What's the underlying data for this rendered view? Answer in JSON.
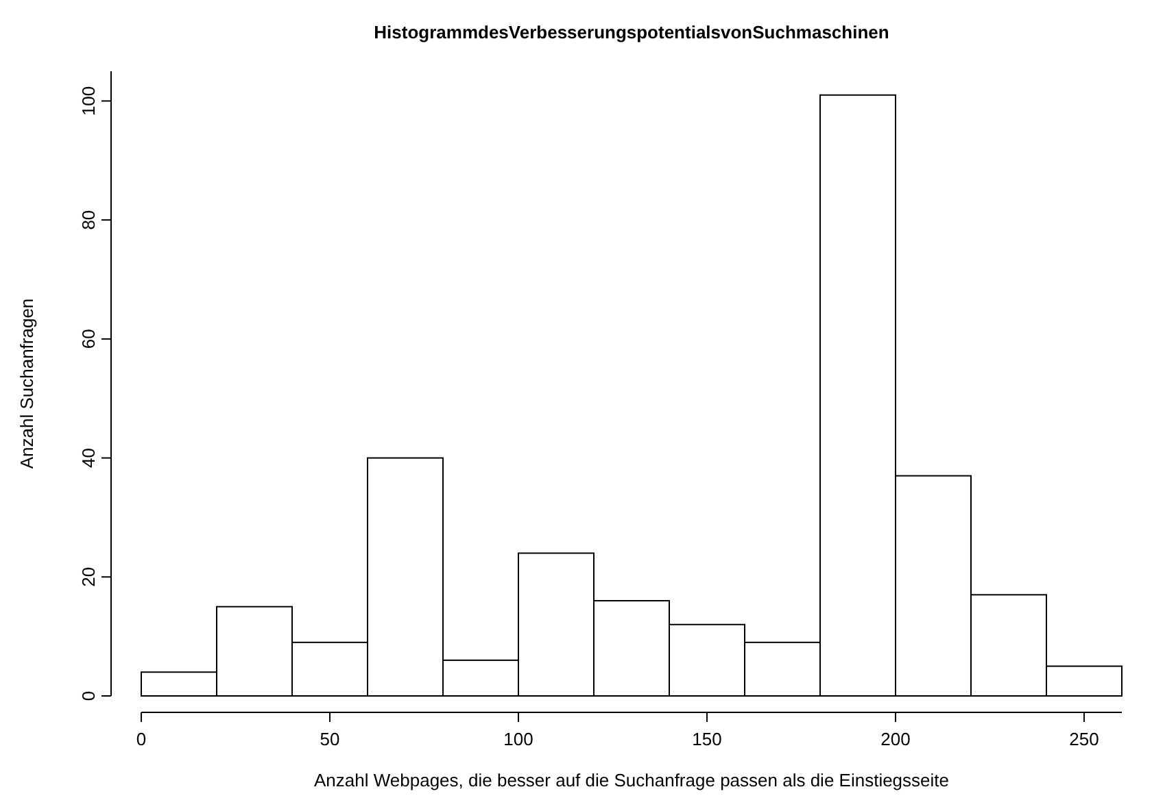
{
  "chart_data": {
    "type": "histogram",
    "title": "HistogrammdesVerbesserungspotentialsvonSuchmaschinen",
    "xlabel": "Anzahl Webpages, die besser auf die Suchanfrage passen als die Einstiegsseite",
    "ylabel": "Anzahl Suchanfragen",
    "bins": [
      0,
      20,
      40,
      60,
      80,
      100,
      120,
      140,
      160,
      180,
      200,
      220,
      240,
      260
    ],
    "values": [
      4,
      15,
      9,
      40,
      6,
      24,
      16,
      12,
      9,
      101,
      37,
      17,
      5
    ],
    "color": "#ffffff",
    "xlim": [
      0,
      260
    ],
    "xticks": [
      0,
      50,
      100,
      150,
      200,
      250
    ],
    "ylim": [
      0,
      105
    ],
    "yticks": [
      0,
      20,
      40,
      60,
      80,
      100
    ],
    "grid": false
  }
}
